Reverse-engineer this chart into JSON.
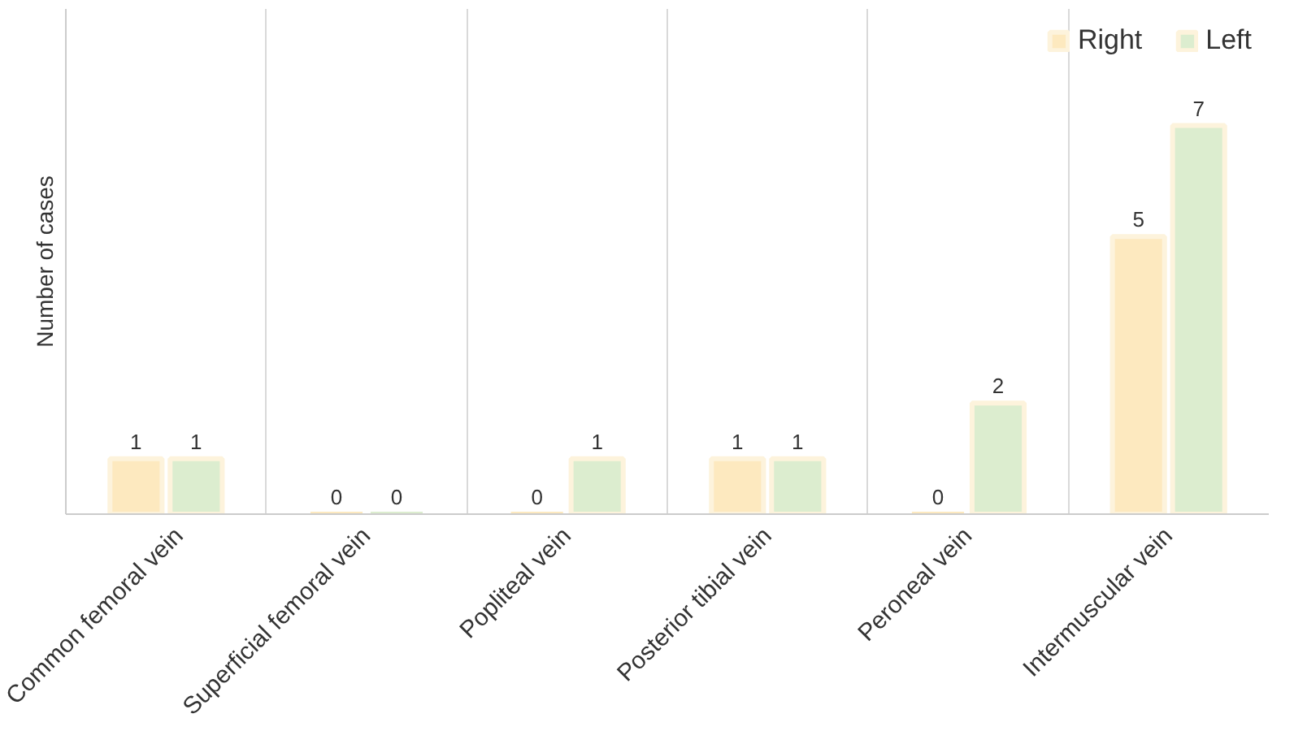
{
  "chart_data": {
    "type": "bar",
    "ylabel": "Number of cases",
    "categories": [
      "Common femoral vein",
      "Superficial femoral vein",
      "Popliteal vein",
      "Posterior tibial vein",
      "Peroneal vein",
      "Intermuscular vein"
    ],
    "series": [
      {
        "name": "Right",
        "color": "#fde9bf",
        "values": [
          1,
          0,
          0,
          1,
          0,
          5
        ]
      },
      {
        "name": "Left",
        "color": "#dcedcf",
        "values": [
          1,
          0,
          1,
          1,
          2,
          7
        ]
      }
    ],
    "data_labels": true,
    "grid": "x",
    "legend": "top right",
    "tick_labels": "x"
  }
}
